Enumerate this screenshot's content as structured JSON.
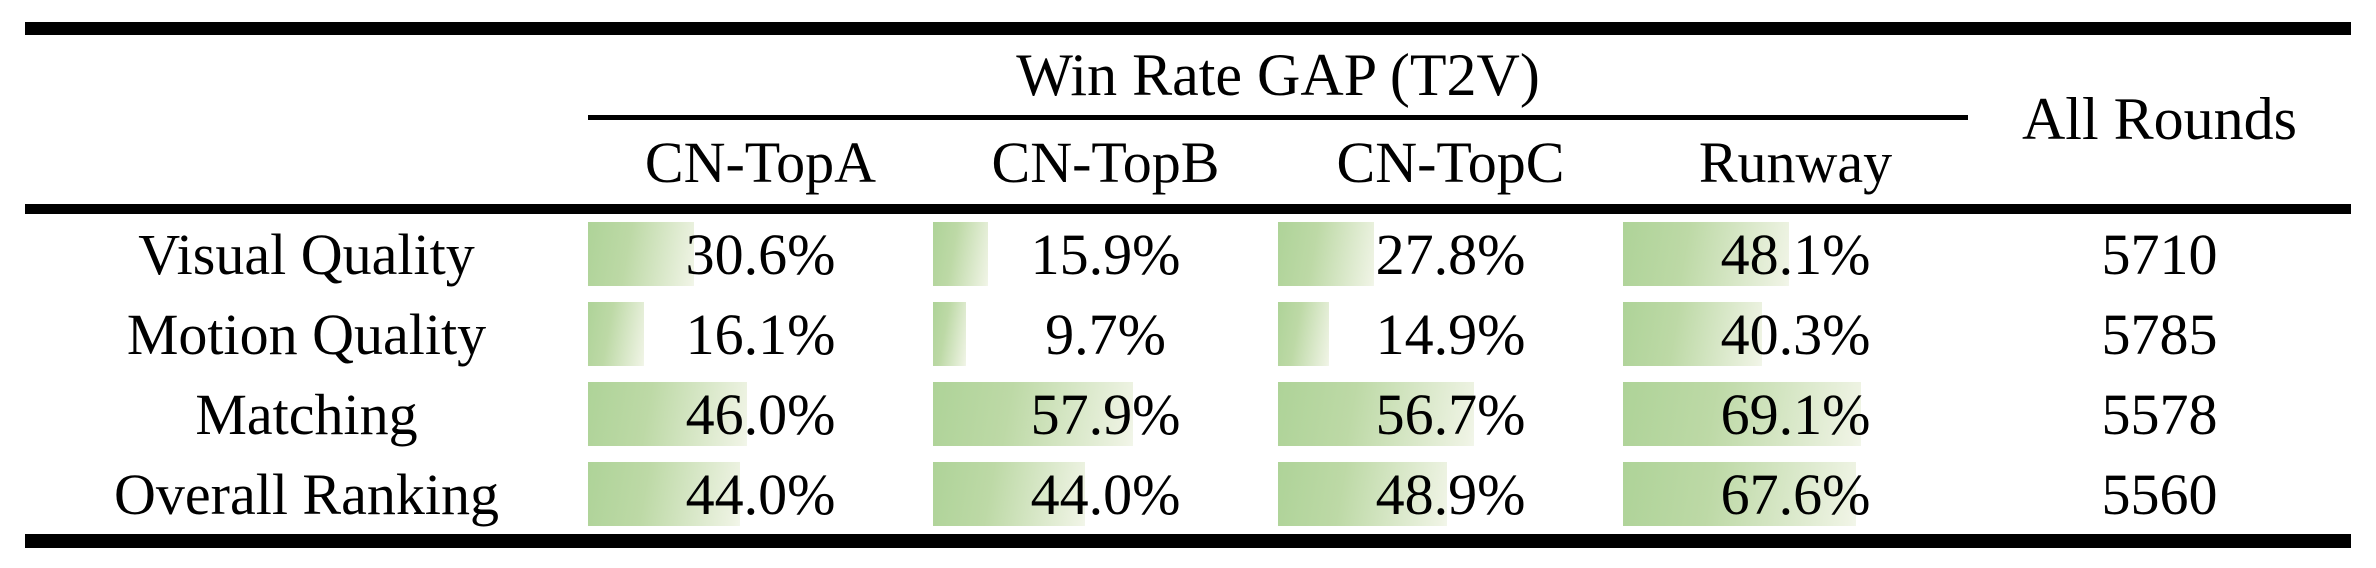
{
  "table": {
    "span_header": "Win Rate GAP (T2V)",
    "all_rounds_header": "All Rounds",
    "columns": [
      "CN-TopA",
      "CN-TopB",
      "CN-TopC",
      "Runway"
    ],
    "rows": [
      {
        "label": "Visual Quality",
        "cells": [
          {
            "pct": 30.6,
            "text": "30.6%"
          },
          {
            "pct": 15.9,
            "text": "15.9%"
          },
          {
            "pct": 27.8,
            "text": "27.8%"
          },
          {
            "pct": 48.1,
            "text": "48.1%"
          }
        ],
        "all_rounds": "5710"
      },
      {
        "label": "Motion Quality",
        "cells": [
          {
            "pct": 16.1,
            "text": "16.1%"
          },
          {
            "pct": 9.7,
            "text": "9.7%"
          },
          {
            "pct": 14.9,
            "text": "14.9%"
          },
          {
            "pct": 40.3,
            "text": "40.3%"
          }
        ],
        "all_rounds": "5785"
      },
      {
        "label": "Matching",
        "cells": [
          {
            "pct": 46.0,
            "text": "46.0%"
          },
          {
            "pct": 57.9,
            "text": "57.9%"
          },
          {
            "pct": 56.7,
            "text": "56.7%"
          },
          {
            "pct": 69.1,
            "text": "69.1%"
          }
        ],
        "all_rounds": "5578"
      },
      {
        "label": "Overall Ranking",
        "cells": [
          {
            "pct": 44.0,
            "text": "44.0%"
          },
          {
            "pct": 44.0,
            "text": "44.0%"
          },
          {
            "pct": 48.9,
            "text": "48.9%"
          },
          {
            "pct": 67.6,
            "text": "67.6%"
          }
        ],
        "all_rounds": "5560"
      }
    ],
    "colors": {
      "bar_gradient_start": "#aed398",
      "bar_gradient_end": "#f2f6ea",
      "rule_color": "#000000",
      "text_color": "#000000",
      "background": "#ffffff"
    }
  },
  "chart_data": {
    "type": "table",
    "title": "Win Rate GAP (T2V)",
    "categories": [
      "CN-TopA",
      "CN-TopB",
      "CN-TopC",
      "Runway"
    ],
    "series": [
      {
        "name": "Visual Quality",
        "values": [
          30.6,
          15.9,
          27.8,
          48.1
        ],
        "all_rounds": 5710
      },
      {
        "name": "Motion Quality",
        "values": [
          16.1,
          9.7,
          14.9,
          40.3
        ],
        "all_rounds": 5785
      },
      {
        "name": "Matching",
        "values": [
          46.0,
          57.9,
          56.7,
          69.1
        ],
        "all_rounds": 5578
      },
      {
        "name": "Overall Ranking",
        "values": [
          44.0,
          44.0,
          48.9,
          67.6
        ],
        "all_rounds": 5560
      }
    ],
    "value_unit": "%",
    "bars": "in-cell horizontal data bars, length proportional to percent, green-to-white gradient"
  }
}
